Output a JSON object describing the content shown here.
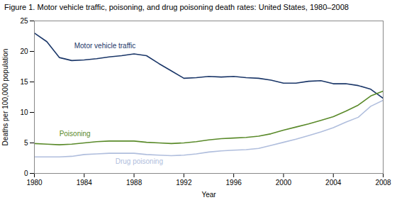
{
  "chart_data": {
    "type": "line",
    "title": "Figure 1. Motor vehicle traffic, poisoning, and drug poisoning death rates: United States, 1980–2008",
    "xlabel": "Year",
    "ylabel": "Deaths per 100,000 population",
    "x": [
      1980,
      1981,
      1982,
      1983,
      1984,
      1985,
      1986,
      1987,
      1988,
      1989,
      1990,
      1991,
      1992,
      1993,
      1994,
      1995,
      1996,
      1997,
      1998,
      1999,
      2000,
      2001,
      2002,
      2003,
      2004,
      2005,
      2006,
      2007,
      2008
    ],
    "series": [
      {
        "name": "Motor vehicle traffic",
        "color": "#1a3668",
        "values": [
          23.0,
          21.6,
          19.0,
          18.5,
          18.6,
          18.8,
          19.1,
          19.3,
          19.6,
          19.3,
          18.0,
          16.8,
          15.6,
          15.7,
          15.9,
          15.8,
          15.9,
          15.7,
          15.6,
          15.3,
          14.8,
          14.8,
          15.1,
          15.2,
          14.7,
          14.7,
          14.4,
          13.8,
          12.3
        ]
      },
      {
        "name": "Poisoning",
        "color": "#5a8a2a",
        "values": [
          4.9,
          4.8,
          4.7,
          4.8,
          5.0,
          5.2,
          5.3,
          5.3,
          5.3,
          5.1,
          5.0,
          4.9,
          5.0,
          5.2,
          5.5,
          5.7,
          5.8,
          5.9,
          6.1,
          6.5,
          7.1,
          7.6,
          8.1,
          8.7,
          9.3,
          10.2,
          11.2,
          12.7,
          13.5
        ]
      },
      {
        "name": "Drug poisoning",
        "color": "#b0bedd",
        "values": [
          2.7,
          2.7,
          2.7,
          2.8,
          3.1,
          3.2,
          3.3,
          3.3,
          3.3,
          3.1,
          3.0,
          2.9,
          3.0,
          3.2,
          3.5,
          3.7,
          3.8,
          3.9,
          4.1,
          4.6,
          5.1,
          5.6,
          6.2,
          6.8,
          7.5,
          8.4,
          9.2,
          11.0,
          12.0
        ]
      }
    ],
    "annotations": [
      {
        "text": "Motor vehicle traffic",
        "x": 1983.2,
        "y": 20.5
      },
      {
        "text": "Poisoning",
        "x": 1982.0,
        "y": 6.15
      },
      {
        "text": "Drug poisoning",
        "x": 1986.5,
        "y": 2.35
      }
    ],
    "xlim": [
      1980,
      2008
    ],
    "xticks": [
      1980,
      1984,
      1988,
      1992,
      1996,
      2000,
      2004,
      2008
    ],
    "ylim": [
      0,
      25
    ],
    "yticks": [
      0,
      5,
      10,
      15,
      20,
      25
    ],
    "grid": false
  }
}
